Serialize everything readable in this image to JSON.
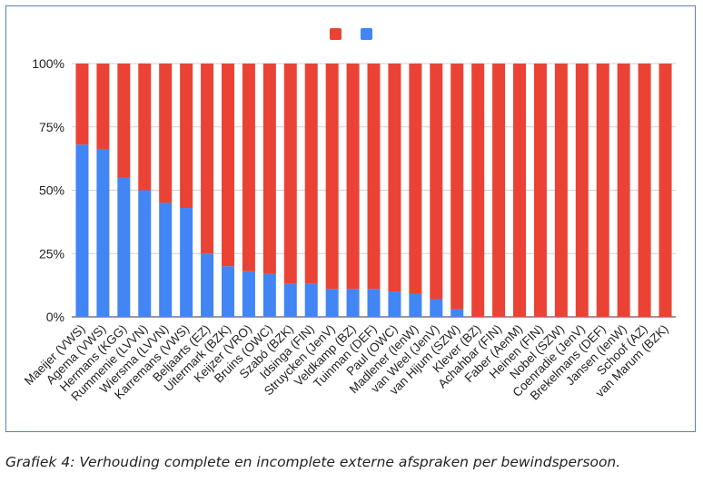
{
  "chart_data": {
    "type": "bar",
    "stacked": true,
    "categories": [
      "Maeijer (VWS)",
      "Agema (VWS)",
      "Hermans (KGG)",
      "Rummenie (LVVN)",
      "Wiersma (LVVN)",
      "Karremans (VWS)",
      "Beljaarts (EZ)",
      "Uitermark (BZK)",
      "Keijzer (VRO)",
      "Bruins (OWC)",
      "Szabó (BZK)",
      "Idsinga (FIN)",
      "Struycken (JenV)",
      "Veldkamp (BZ)",
      "Tuinman (DEF)",
      "Paul (OWC)",
      "Madlener (IenW)",
      "van Weel (JenV)",
      "van Hijum (SZW)",
      "Klever (BZ)",
      "Achahbar (FIN)",
      "Faber (AenM)",
      "Heinen (FIN)",
      "Nobel (SZW)",
      "Coenradie (JenV)",
      "Brekelmans (DEF)",
      "Jansen (IenW)",
      "Schoof (AZ)",
      "van Marum (BZK)"
    ],
    "series": [
      {
        "color": "#4285f4",
        "values": [
          0.68,
          0.66,
          0.55,
          0.5,
          0.45,
          0.43,
          0.25,
          0.2,
          0.18,
          0.17,
          0.13,
          0.13,
          0.11,
          0.11,
          0.11,
          0.1,
          0.09,
          0.07,
          0.03,
          0,
          0,
          0,
          0,
          0,
          0,
          0,
          0,
          0,
          0
        ]
      },
      {
        "color": "#ea4335",
        "values": [
          0.32,
          0.34,
          0.45,
          0.5,
          0.55,
          0.57,
          0.75,
          0.8,
          0.82,
          0.83,
          0.87,
          0.87,
          0.89,
          0.89,
          0.89,
          0.9,
          0.91,
          0.93,
          0.97,
          1,
          1,
          1,
          1,
          1,
          1,
          1,
          1,
          1,
          1
        ]
      }
    ],
    "ylim": [
      0,
      1
    ],
    "yticks": [
      "0%",
      "25%",
      "50%",
      "75%",
      "100%"
    ],
    "grid": true,
    "legend_position": "top-center"
  },
  "caption": "Grafiek 4: Verhouding complete en incomplete externe afspraken per bewindspersoon."
}
